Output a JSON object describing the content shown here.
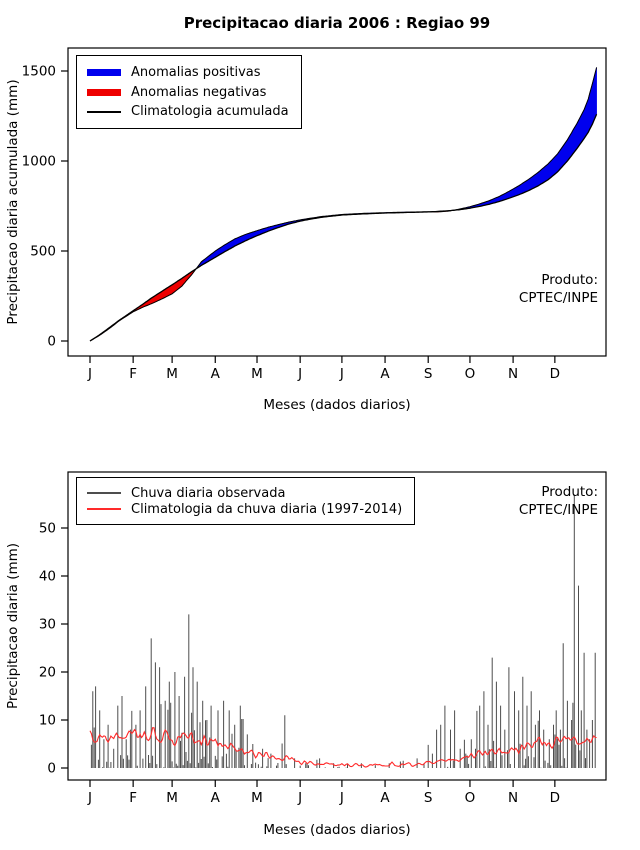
{
  "chart_data": [
    {
      "type": "area",
      "title": "Precipitacao diaria 2006 : Regiao 99",
      "xlabel": "Meses (dados diarios)",
      "ylabel": "Precipitacao diaria acumulada (mm)",
      "yticks": [
        0,
        500,
        1000,
        1500
      ],
      "ylim": [
        0,
        1550
      ],
      "month_labels": [
        "J",
        "F",
        "M",
        "A",
        "M",
        "J",
        "J",
        "A",
        "S",
        "O",
        "N",
        "D"
      ],
      "legend": [
        {
          "label": "Anomalias positivas",
          "color": "#0000ee",
          "lw": 7
        },
        {
          "label": "Anomalias negativas",
          "color": "#ee0000",
          "lw": 7
        },
        {
          "label": "Climatologia acumulada",
          "color": "#000000",
          "lw": 2
        }
      ],
      "annotation": [
        "Produto:",
        "CPTEC/INPE"
      ],
      "colors": {
        "positive": "#0000ee",
        "negative": "#ee0000",
        "line": "#000000"
      },
      "days": [
        0,
        7,
        14,
        21,
        31,
        38,
        45,
        52,
        59,
        66,
        73,
        80,
        90,
        97,
        104,
        112,
        120,
        128,
        135,
        143,
        151,
        159,
        167,
        181,
        196,
        212,
        227,
        243,
        250,
        258,
        265,
        273,
        280,
        287,
        294,
        301,
        308,
        315,
        322,
        329,
        336,
        343,
        350,
        355,
        358,
        361,
        364
      ],
      "climatologia_acumulada": [
        0,
        35,
        75,
        115,
        168,
        205,
        243,
        278,
        312,
        348,
        385,
        420,
        465,
        497,
        527,
        558,
        585,
        610,
        630,
        650,
        666,
        678,
        688,
        700,
        706,
        711,
        714,
        717,
        720,
        724,
        729,
        738,
        748,
        760,
        775,
        793,
        812,
        835,
        862,
        895,
        940,
        1000,
        1070,
        1125,
        1160,
        1205,
        1260
      ],
      "observado_acumulado": [
        0,
        32,
        70,
        112,
        162,
        188,
        210,
        235,
        262,
        305,
        368,
        440,
        500,
        535,
        567,
        593,
        613,
        632,
        646,
        661,
        673,
        683,
        692,
        703,
        709,
        713,
        716,
        718,
        717,
        722,
        732,
        746,
        762,
        780,
        803,
        831,
        862,
        897,
        937,
        983,
        1040,
        1118,
        1210,
        1285,
        1345,
        1430,
        1520
      ]
    },
    {
      "type": "bar",
      "xlabel": "Meses (dados diarios)",
      "ylabel": "Precipitacao diaria (mm)",
      "yticks": [
        0,
        10,
        20,
        30,
        40,
        50
      ],
      "ylim": [
        0,
        58
      ],
      "month_labels": [
        "J",
        "F",
        "M",
        "A",
        "M",
        "J",
        "J",
        "A",
        "S",
        "O",
        "N",
        "D"
      ],
      "legend": [
        {
          "label": "Chuva diaria observada",
          "color": "#4d4d4d",
          "lw": 2
        },
        {
          "label": "Climatologia da chuva diaria (1997-2014)",
          "color": "#ff2a2a",
          "lw": 2
        }
      ],
      "annotation": [
        "Produto:",
        "CPTEC/INPE"
      ],
      "colors": {
        "bars": "#4d4d4d",
        "clim_line": "#ff2a2a"
      },
      "seed": 20060,
      "clim_monthly_mean": [
        6.5,
        7.0,
        6.5,
        4.2,
        2.2,
        0.8,
        0.5,
        0.7,
        1.5,
        3.2,
        5.0,
        6.2
      ],
      "bar_monthly_prob": [
        0.55,
        0.6,
        0.6,
        0.5,
        0.22,
        0.12,
        0.1,
        0.12,
        0.3,
        0.45,
        0.5,
        0.55
      ],
      "bar_monthly_scale": [
        7,
        8,
        8,
        6,
        3,
        1,
        0.8,
        1,
        4,
        7,
        6,
        8
      ],
      "spikes": [
        [
          2,
          16
        ],
        [
          4,
          17
        ],
        [
          7,
          12
        ],
        [
          10,
          6
        ],
        [
          13,
          9
        ],
        [
          17,
          4
        ],
        [
          20,
          13
        ],
        [
          23,
          15
        ],
        [
          26,
          6
        ],
        [
          29,
          8
        ],
        [
          33,
          9
        ],
        [
          36,
          12
        ],
        [
          40,
          17
        ],
        [
          44,
          27
        ],
        [
          47,
          22
        ],
        [
          50,
          21
        ],
        [
          54,
          14
        ],
        [
          57,
          18
        ],
        [
          61,
          20
        ],
        [
          64,
          15
        ],
        [
          68,
          19
        ],
        [
          71,
          32
        ],
        [
          74,
          21
        ],
        [
          77,
          18
        ],
        [
          81,
          14
        ],
        [
          84,
          10
        ],
        [
          87,
          13
        ],
        [
          92,
          12
        ],
        [
          96,
          14
        ],
        [
          100,
          12
        ],
        [
          104,
          9
        ],
        [
          108,
          13
        ],
        [
          113,
          7
        ],
        [
          117,
          5
        ],
        [
          124,
          4
        ],
        [
          130,
          3
        ],
        [
          140,
          11
        ],
        [
          147,
          2
        ],
        [
          155,
          1
        ],
        [
          165,
          2
        ],
        [
          175,
          1
        ],
        [
          185,
          0.8
        ],
        [
          195,
          1
        ],
        [
          205,
          0.6
        ],
        [
          215,
          1
        ],
        [
          225,
          1.5
        ],
        [
          235,
          2
        ],
        [
          240,
          1
        ],
        [
          246,
          3
        ],
        [
          249,
          8
        ],
        [
          252,
          9
        ],
        [
          255,
          13
        ],
        [
          259,
          8
        ],
        [
          262,
          12
        ],
        [
          266,
          4
        ],
        [
          270,
          3
        ],
        [
          274,
          6
        ],
        [
          277,
          4
        ],
        [
          280,
          13
        ],
        [
          283,
          16
        ],
        [
          286,
          9
        ],
        [
          289,
          23
        ],
        [
          292,
          18
        ],
        [
          295,
          13
        ],
        [
          298,
          8
        ],
        [
          301,
          21
        ],
        [
          305,
          16
        ],
        [
          308,
          12
        ],
        [
          311,
          19
        ],
        [
          314,
          13
        ],
        [
          317,
          16
        ],
        [
          320,
          9
        ],
        [
          323,
          12
        ],
        [
          326,
          8
        ],
        [
          330,
          6
        ],
        [
          333,
          9
        ],
        [
          335,
          12
        ],
        [
          338,
          8
        ],
        [
          340,
          26
        ],
        [
          343,
          14
        ],
        [
          346,
          10
        ],
        [
          348,
          57
        ],
        [
          351,
          38
        ],
        [
          353,
          12
        ],
        [
          355,
          24
        ],
        [
          357,
          8
        ],
        [
          359,
          6
        ],
        [
          361,
          10
        ],
        [
          363,
          24
        ]
      ]
    }
  ]
}
